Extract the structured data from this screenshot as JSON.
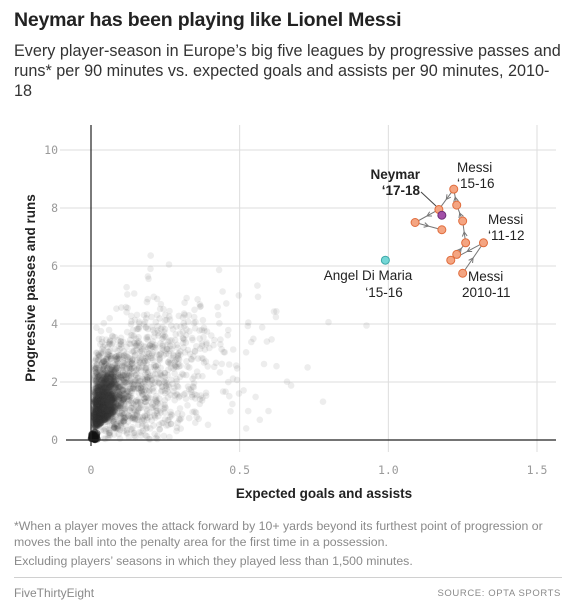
{
  "header": {
    "title": "Neymar has been playing like Lionel Messi",
    "subtitle": "Every player-season in Europe’s big five leagues by progressive passes and runs* per 90 minutes vs. expected goals and assists per 90 minutes, 2010-18"
  },
  "chart_data": {
    "type": "scatter",
    "xlabel": "Expected goals and assists",
    "ylabel": "Progressive passes and runs",
    "xlim": [
      0,
      1.5
    ],
    "ylim": [
      0,
      10
    ],
    "x_ticks": [
      "0",
      "0.5",
      "1.0",
      "1.5"
    ],
    "y_ticks": [
      "0",
      "2",
      "4",
      "6",
      "8",
      "10"
    ],
    "grid": true,
    "background_series": {
      "description": "Every player-season in Europe’s big five leagues, 2010-18",
      "color": "#333333"
    },
    "messi_series": {
      "color": "#f4a582",
      "stroke": "#e06c3c",
      "points": [
        {
          "x": 1.25,
          "y": 5.75
        },
        {
          "x": 1.32,
          "y": 6.8
        },
        {
          "x": 1.21,
          "y": 6.2
        },
        {
          "x": 1.23,
          "y": 6.4
        },
        {
          "x": 1.26,
          "y": 6.8
        },
        {
          "x": 1.25,
          "y": 7.55
        },
        {
          "x": 1.23,
          "y": 8.1
        },
        {
          "x": 1.22,
          "y": 8.65
        },
        {
          "x": 1.17,
          "y": 7.95
        },
        {
          "x": 1.09,
          "y": 7.5
        },
        {
          "x": 1.18,
          "y": 7.25
        }
      ]
    },
    "neymar": {
      "x": 1.18,
      "y": 7.75,
      "color": "#a24fa8",
      "stroke": "#6b2d75"
    },
    "di_maria": {
      "x": 0.99,
      "y": 6.2,
      "color": "#74d7d6",
      "stroke": "#3ea8a8"
    },
    "labels": {
      "neymar_line1": "Neymar",
      "neymar_line2": "‘17-18",
      "messi_1516_line1": "Messi",
      "messi_1516_line2": "‘15-16",
      "messi_1112_line1": "Messi",
      "messi_1112_line2": "‘11-12",
      "messi_2010_line1": "Messi",
      "messi_2010_line2": "2010-11",
      "dimaria_line1": "Angel Di Maria",
      "dimaria_line2": "‘15-16"
    }
  },
  "footer": {
    "note1": "*When a player moves the attack forward by 10+ yards beyond its furthest point of progression or moves the ball into the penalty area for the first time in a possession.",
    "note2": "Excluding players’ seasons in which they played less than 1,500 minutes.",
    "brand": "FiveThirtyEight",
    "source": "SOURCE: OPTA SPORTS"
  }
}
